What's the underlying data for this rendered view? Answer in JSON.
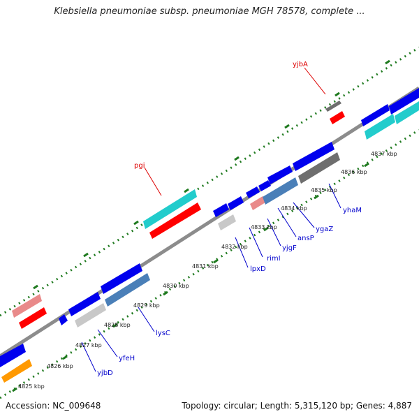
{
  "title": "Klebsiella pneumoniae subsp. pneumoniae MGH 78578, complete ...",
  "footer": {
    "accession": "Accession: NC_009648",
    "topology": "Topology: circular; Length: 5,315,120 bp; Genes: 4,887"
  },
  "colors": {
    "backbone": "#8c8c8c",
    "ticks": "#1f7a1f",
    "red": "#ff0000",
    "pink": "#e98a8a",
    "blue": "#0000ee",
    "cyan": "#22cccc",
    "steel": "#4a7fb8",
    "grey": "#6e6e6e",
    "silver": "#c8c8c8",
    "orange": "#ff9900",
    "label_red": "#dd0000",
    "label_blue": "#0000cc"
  },
  "scale_labels": [
    "4825 kbp",
    "4826 kbp",
    "4827 kbp",
    "4828 kbp",
    "4829 kbp",
    "4830 kbp",
    "4831 kbp",
    "4832 kbp",
    "4833 kbp",
    "4834 kbp",
    "4835 kbp",
    "4836 kbp",
    "4837 kbp"
  ],
  "genes": [
    {
      "name": "yjbA",
      "color": "grey"
    },
    {
      "name": "pgi",
      "color": "cyan"
    },
    {
      "name": "yhaM",
      "color": "blue"
    },
    {
      "name": "ygaZ",
      "color": "blue"
    },
    {
      "name": "ansP",
      "color": "steel"
    },
    {
      "name": "yjgF",
      "color": "blue"
    },
    {
      "name": "rimI",
      "color": "blue"
    },
    {
      "name": "lpxD",
      "color": "silver"
    },
    {
      "name": "lysC",
      "color": "steel"
    },
    {
      "name": "yfeH",
      "color": "silver"
    },
    {
      "name": "yjbD",
      "color": "blue"
    }
  ]
}
